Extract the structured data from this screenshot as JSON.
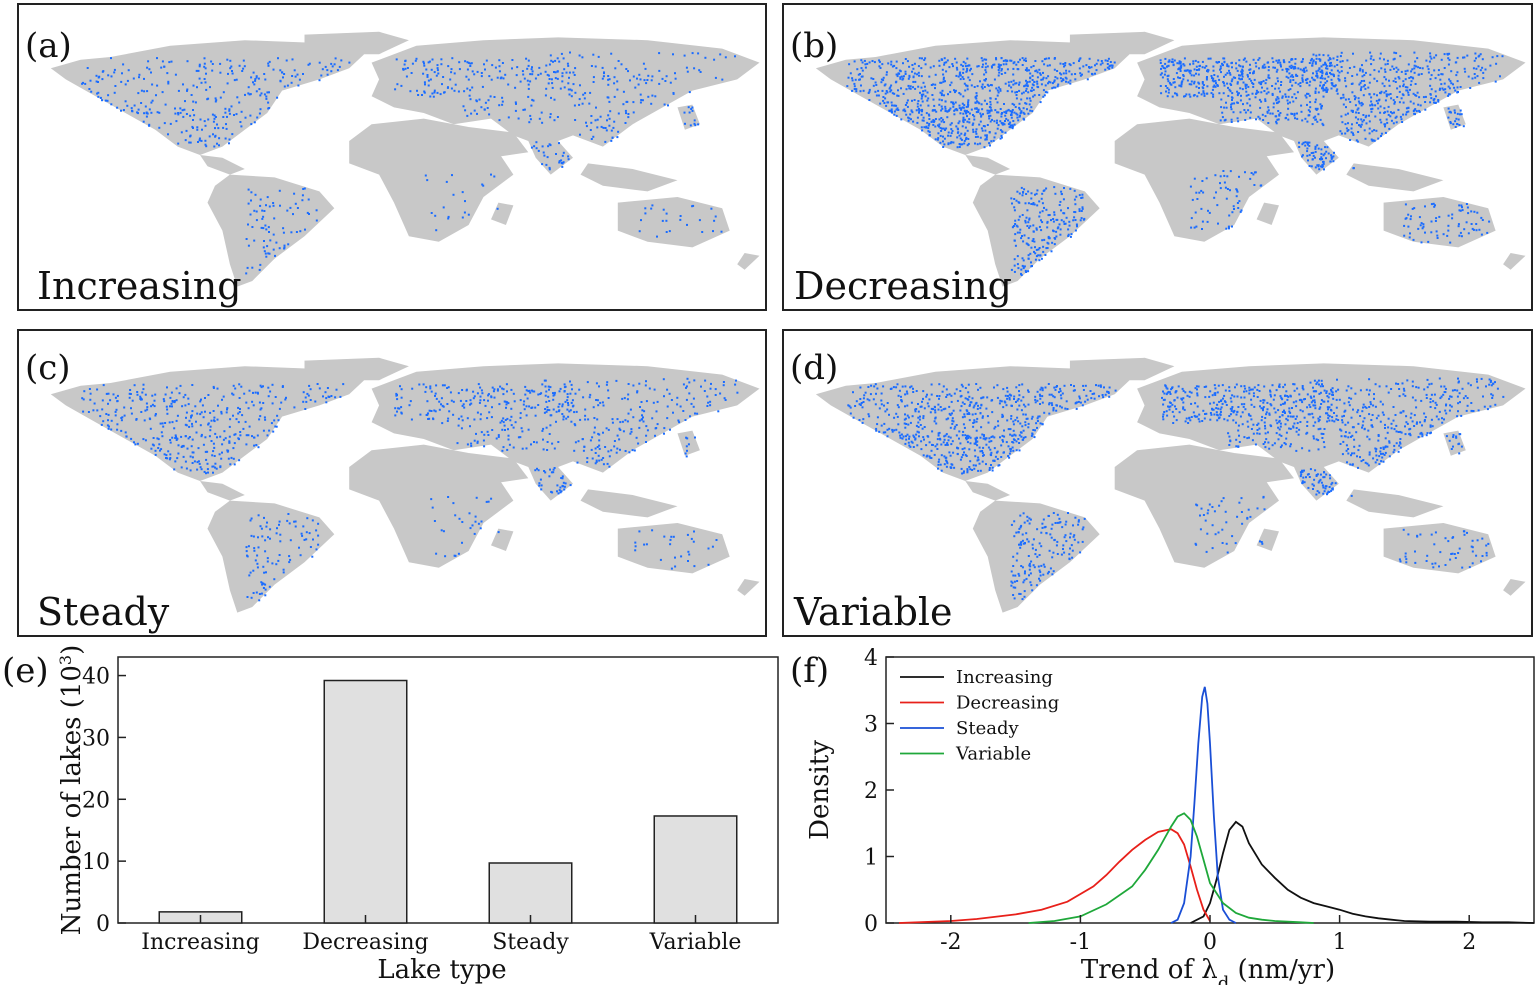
{
  "maps": [
    {
      "id": "a",
      "label": "(a)",
      "title": "Increasing",
      "density": 0.35,
      "color": "#1a6cff"
    },
    {
      "id": "b",
      "label": "(b)",
      "title": "Decreasing",
      "density": 1.0,
      "color": "#1a6cff"
    },
    {
      "id": "c",
      "label": "(c)",
      "title": "Steady",
      "density": 0.45,
      "color": "#1a6cff"
    },
    {
      "id": "d",
      "label": "(d)",
      "title": "Variable",
      "density": 0.75,
      "color": "#1a6cff"
    }
  ],
  "colors": {
    "land": "#c8c8c8",
    "lake_dots": "#1a6cff",
    "bar_fill": "#e0e0e0",
    "bar_stroke": "#222222"
  },
  "chart_data": [
    {
      "panel_label": "(e)",
      "type": "bar",
      "categories": [
        "Increasing",
        "Decreasing",
        "Steady",
        "Variable"
      ],
      "values": [
        1.8,
        39.2,
        9.7,
        17.3
      ],
      "xlabel": "Lake type",
      "ylabel": "Number of lakes (10³)",
      "ylim": [
        0,
        43
      ],
      "yticks": [
        0,
        10,
        20,
        30,
        40
      ]
    },
    {
      "panel_label": "(f)",
      "type": "line",
      "xlabel": "Trend of λd (nm/yr)",
      "ylabel": "Density",
      "xlim": [
        -2.5,
        2.5
      ],
      "ylim": [
        0,
        4
      ],
      "xticks": [
        -2,
        -1,
        0,
        1,
        2
      ],
      "yticks": [
        0,
        1,
        2,
        3,
        4
      ],
      "legend_position": "top-left",
      "series": [
        {
          "name": "Increasing",
          "color": "#111111",
          "x": [
            -0.15,
            -0.05,
            0.0,
            0.05,
            0.1,
            0.15,
            0.2,
            0.25,
            0.3,
            0.4,
            0.5,
            0.6,
            0.7,
            0.8,
            0.9,
            1.0,
            1.1,
            1.2,
            1.3,
            1.4,
            1.5,
            1.7,
            1.9,
            2.1,
            2.3,
            2.5
          ],
          "y": [
            0.0,
            0.1,
            0.3,
            0.65,
            1.05,
            1.4,
            1.52,
            1.45,
            1.2,
            0.88,
            0.68,
            0.5,
            0.38,
            0.3,
            0.25,
            0.2,
            0.14,
            0.1,
            0.07,
            0.05,
            0.03,
            0.02,
            0.02,
            0.01,
            0.01,
            0.0
          ]
        },
        {
          "name": "Decreasing",
          "color": "#e8201a",
          "x": [
            -2.4,
            -2.0,
            -1.8,
            -1.5,
            -1.3,
            -1.1,
            -0.9,
            -0.8,
            -0.7,
            -0.6,
            -0.5,
            -0.4,
            -0.3,
            -0.25,
            -0.2,
            -0.15,
            -0.1,
            -0.05,
            0.0
          ],
          "y": [
            0.0,
            0.03,
            0.06,
            0.13,
            0.2,
            0.32,
            0.55,
            0.72,
            0.92,
            1.1,
            1.25,
            1.37,
            1.41,
            1.35,
            1.18,
            0.85,
            0.5,
            0.2,
            0.03
          ]
        },
        {
          "name": "Steady",
          "color": "#1a4fd6",
          "x": [
            -0.3,
            -0.25,
            -0.2,
            -0.15,
            -0.12,
            -0.09,
            -0.06,
            -0.04,
            -0.02,
            0.0,
            0.03,
            0.06,
            0.1,
            0.15,
            0.2
          ],
          "y": [
            0.0,
            0.05,
            0.3,
            1.0,
            1.8,
            2.7,
            3.4,
            3.55,
            3.3,
            2.7,
            1.6,
            0.7,
            0.2,
            0.05,
            0.0
          ]
        },
        {
          "name": "Variable",
          "color": "#1fa83a",
          "x": [
            -1.4,
            -1.2,
            -1.0,
            -0.8,
            -0.6,
            -0.5,
            -0.4,
            -0.3,
            -0.25,
            -0.2,
            -0.15,
            -0.1,
            -0.05,
            0.0,
            0.1,
            0.2,
            0.3,
            0.4,
            0.5,
            0.6,
            0.7,
            0.8
          ],
          "y": [
            0.0,
            0.03,
            0.1,
            0.28,
            0.55,
            0.8,
            1.1,
            1.45,
            1.6,
            1.65,
            1.55,
            1.3,
            0.95,
            0.6,
            0.3,
            0.15,
            0.08,
            0.05,
            0.03,
            0.02,
            0.01,
            0.0
          ]
        }
      ]
    }
  ]
}
